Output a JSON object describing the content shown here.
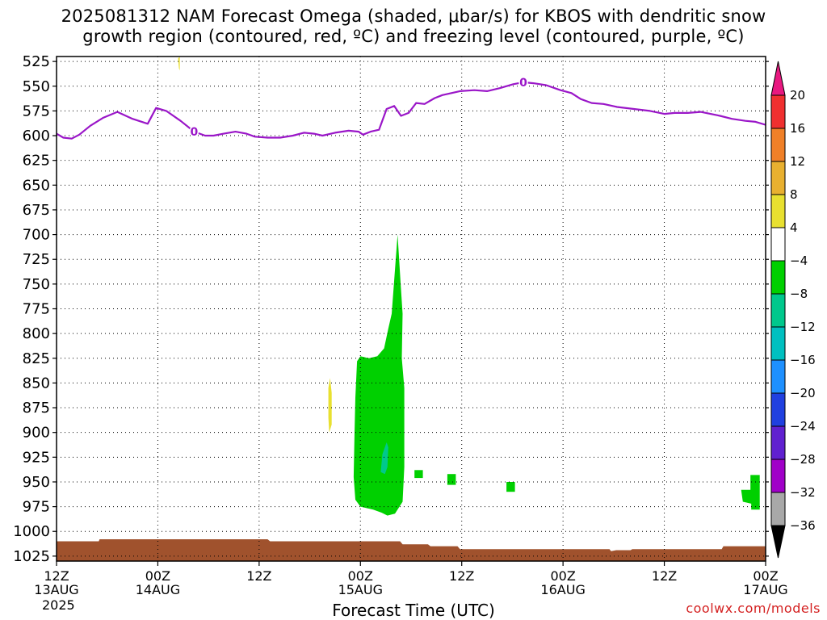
{
  "title_line1": "2025081312 NAM Forecast Omega (shaded, μbar/s) for KBOS with dendritic snow",
  "title_line2": "growth region (contoured, red, ºC) and freezing level (contoured, purple, ºC)",
  "xlabel": "Forecast Time (UTC)",
  "credit": "coolwx.com/models",
  "year": "2025",
  "chart_data": {
    "type": "area",
    "title": "2025081312 NAM Forecast Omega (shaded, μbar/s) for KBOS with dendritic snow growth region (contoured, red, ºC) and freezing level (contoured, purple, ºC)",
    "xlabel": "Forecast Time (UTC)",
    "ylabel": "",
    "x_range_hours": [
      0,
      84
    ],
    "x_ticks": [
      {
        "h": 0,
        "l1": "12Z",
        "l2": "13AUG"
      },
      {
        "h": 12,
        "l1": "00Z",
        "l2": "14AUG"
      },
      {
        "h": 24,
        "l1": "12Z",
        "l2": ""
      },
      {
        "h": 36,
        "l1": "00Z",
        "l2": "15AUG"
      },
      {
        "h": 48,
        "l1": "12Z",
        "l2": ""
      },
      {
        "h": 60,
        "l1": "00Z",
        "l2": "16AUG"
      },
      {
        "h": 72,
        "l1": "12Z",
        "l2": ""
      },
      {
        "h": 84,
        "l1": "00Z",
        "l2": "17AUG"
      }
    ],
    "y_ticks": [
      525,
      550,
      575,
      600,
      625,
      650,
      675,
      700,
      725,
      750,
      775,
      800,
      825,
      850,
      875,
      900,
      925,
      950,
      975,
      1000,
      1025
    ],
    "y_range": [
      520,
      1030
    ],
    "grid": true,
    "freezing_level": {
      "color": "#9a16c8",
      "label": "0",
      "points": [
        [
          0,
          598
        ],
        [
          0.8,
          602
        ],
        [
          1.8,
          603
        ],
        [
          2.7,
          599
        ],
        [
          4,
          590
        ],
        [
          5.5,
          582
        ],
        [
          7.2,
          576
        ],
        [
          9,
          583
        ],
        [
          10.8,
          588
        ],
        [
          11.8,
          572
        ],
        [
          13,
          575
        ],
        [
          14.7,
          585
        ],
        [
          16.3,
          596
        ],
        [
          17.6,
          600
        ],
        [
          18.6,
          600
        ],
        [
          19.8,
          598
        ],
        [
          21.2,
          596
        ],
        [
          22.5,
          598
        ],
        [
          23.5,
          601
        ],
        [
          25,
          602
        ],
        [
          26.5,
          602
        ],
        [
          28,
          600
        ],
        [
          29.3,
          597
        ],
        [
          30.5,
          598
        ],
        [
          31.5,
          600
        ],
        [
          33,
          597
        ],
        [
          34.6,
          595
        ],
        [
          35.8,
          596
        ],
        [
          36.3,
          599
        ],
        [
          37.2,
          596
        ],
        [
          38.2,
          594
        ],
        [
          39.1,
          573
        ],
        [
          40,
          570
        ],
        [
          40.8,
          580
        ],
        [
          41.7,
          577
        ],
        [
          42.6,
          567
        ],
        [
          43.6,
          568
        ],
        [
          44.8,
          562
        ],
        [
          45.7,
          559
        ],
        [
          47.8,
          555
        ],
        [
          49.5,
          554
        ],
        [
          51,
          555
        ],
        [
          52.5,
          552
        ],
        [
          54.1,
          548
        ],
        [
          55.3,
          546
        ],
        [
          56.5,
          547
        ],
        [
          58,
          549
        ],
        [
          59.7,
          554
        ],
        [
          61,
          557
        ],
        [
          62.1,
          563
        ],
        [
          63.4,
          567
        ],
        [
          64.8,
          568
        ],
        [
          66.4,
          571
        ],
        [
          68.4,
          573
        ],
        [
          70.3,
          575
        ],
        [
          72,
          578
        ],
        [
          73.2,
          577
        ],
        [
          74.8,
          577
        ],
        [
          76.3,
          576
        ],
        [
          78.6,
          580
        ],
        [
          80,
          583
        ],
        [
          81.6,
          585
        ],
        [
          82.8,
          586
        ],
        [
          84,
          589
        ]
      ]
    },
    "omega_regions": [
      {
        "color": "#00d000",
        "points": [
          [
            35.6,
            828
          ],
          [
            36,
            823
          ],
          [
            37,
            825
          ],
          [
            38,
            823
          ],
          [
            38.8,
            815
          ],
          [
            39.3,
            795
          ],
          [
            39.7,
            780
          ],
          [
            39.9,
            758
          ],
          [
            40.1,
            735
          ],
          [
            40.4,
            700
          ],
          [
            40.8,
            755
          ],
          [
            41,
            780
          ],
          [
            40.9,
            825
          ],
          [
            41.2,
            855
          ],
          [
            41.2,
            935
          ],
          [
            41,
            970
          ],
          [
            40.1,
            982
          ],
          [
            39.2,
            984
          ],
          [
            38.5,
            981
          ],
          [
            37.5,
            978
          ],
          [
            36,
            975
          ],
          [
            35.4,
            968
          ],
          [
            35.2,
            945
          ],
          [
            35.3,
            900
          ],
          [
            35.4,
            865
          ]
        ]
      },
      {
        "color": "#00c88c",
        "points": [
          [
            38.6,
            922
          ],
          [
            39.1,
            910
          ],
          [
            39.3,
            915
          ],
          [
            39.2,
            935
          ],
          [
            38.9,
            942
          ],
          [
            38.4,
            940
          ]
        ]
      },
      {
        "color": "#e8e030",
        "points": [
          [
            32.2,
            855
          ],
          [
            32.4,
            845
          ],
          [
            32.6,
            860
          ],
          [
            32.6,
            892
          ],
          [
            32.3,
            900
          ],
          [
            32.2,
            885
          ]
        ]
      },
      {
        "color": "#e8e030",
        "points": [
          [
            14.4,
            522
          ],
          [
            14.6,
            520
          ],
          [
            14.6,
            534
          ],
          [
            14.5,
            532
          ]
        ]
      },
      {
        "color": "#00d000",
        "points": [
          [
            42.4,
            938
          ],
          [
            43.4,
            938
          ],
          [
            43.4,
            946
          ],
          [
            42.4,
            946
          ]
        ]
      },
      {
        "color": "#00d000",
        "points": [
          [
            46.3,
            942
          ],
          [
            47.3,
            942
          ],
          [
            47.3,
            953
          ],
          [
            46.3,
            953
          ]
        ]
      },
      {
        "color": "#00d000",
        "points": [
          [
            53.3,
            950
          ],
          [
            54.3,
            950
          ],
          [
            54.3,
            960
          ],
          [
            53.3,
            960
          ]
        ]
      },
      {
        "color": "#00d000",
        "points": [
          [
            82.2,
            943
          ],
          [
            83.3,
            943
          ],
          [
            83.3,
            978
          ],
          [
            82.3,
            978
          ],
          [
            82.3,
            972
          ],
          [
            81.3,
            970
          ],
          [
            81.1,
            958
          ],
          [
            82.2,
            958
          ]
        ]
      }
    ],
    "terrain": {
      "color": "#a0522d",
      "points": [
        [
          0,
          1010
        ],
        [
          5,
          1010
        ],
        [
          5.1,
          1008
        ],
        [
          25,
          1008
        ],
        [
          25.3,
          1010
        ],
        [
          40.7,
          1010
        ],
        [
          41,
          1013
        ],
        [
          44,
          1013
        ],
        [
          44.3,
          1015
        ],
        [
          47.5,
          1015
        ],
        [
          47.8,
          1018
        ],
        [
          65.5,
          1018
        ],
        [
          65.7,
          1020
        ],
        [
          66.3,
          1019
        ],
        [
          68,
          1019
        ],
        [
          68.2,
          1018
        ],
        [
          78.8,
          1018
        ],
        [
          79,
          1015
        ],
        [
          84,
          1015
        ],
        [
          84,
          1030
        ],
        [
          0,
          1030
        ]
      ]
    },
    "colorbar": {
      "labels": [
        "20",
        "16",
        "12",
        "8",
        "4",
        "−4",
        "−8",
        "−12",
        "−16",
        "−20",
        "−24",
        "−28",
        "−32",
        "−36"
      ],
      "colors": [
        "#f03030",
        "#f08028",
        "#e8b030",
        "#e8e030",
        "#ffffff",
        "#00d000",
        "#00c88c",
        "#00c0c0",
        "#1e90ff",
        "#2040e0",
        "#6020d0",
        "#a000c8",
        "#a8a8a8"
      ],
      "top_arrow_color": "#e81880",
      "bottom_arrow_color": "#000000"
    }
  }
}
